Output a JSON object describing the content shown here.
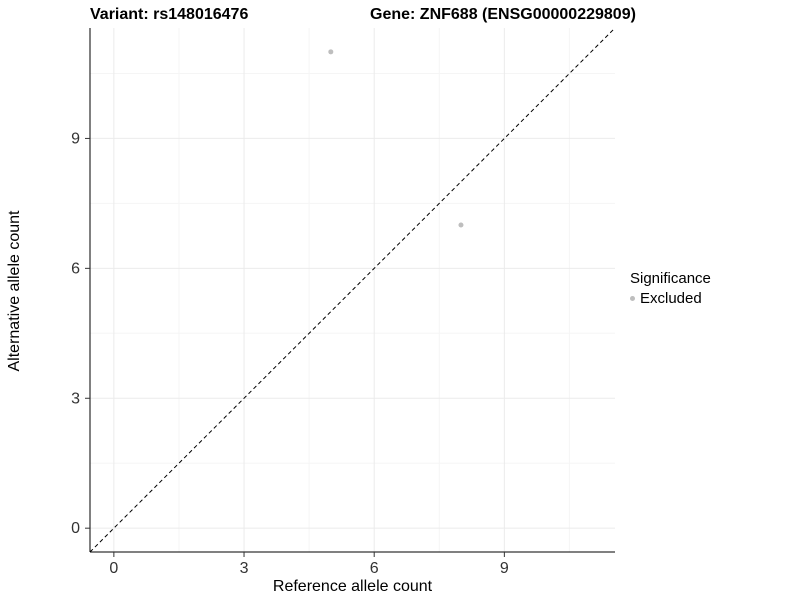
{
  "title": {
    "variant": "Variant: rs148016476",
    "gene": "Gene: ZNF688 (ENSG00000229809)"
  },
  "chart_data": {
    "type": "scatter",
    "title_left": "Variant: rs148016476",
    "title_right": "Gene: ZNF688 (ENSG00000229809)",
    "xlabel": "Reference allele count",
    "ylabel": "Alternative allele count",
    "xlim": [
      -0.55,
      11.55
    ],
    "ylim": [
      -0.55,
      11.55
    ],
    "xticks": [
      0,
      3,
      6,
      9
    ],
    "yticks": [
      0,
      3,
      6,
      9
    ],
    "xticks_minor": [
      1.5,
      4.5,
      7.5,
      10.5
    ],
    "yticks_minor": [
      1.5,
      4.5,
      7.5,
      10.5
    ],
    "grid": true,
    "identity_line": {
      "style": "dashed",
      "x1": -0.55,
      "y1": -0.55,
      "x2": 11.55,
      "y2": 11.55,
      "color": "#000000"
    },
    "series": [
      {
        "name": "Excluded",
        "color": "#bebebe",
        "points": [
          {
            "x": 5,
            "y": 11
          },
          {
            "x": 8,
            "y": 7
          }
        ]
      }
    ],
    "legend": {
      "title": "Significance",
      "position": "right",
      "items": [
        {
          "label": "Excluded",
          "color": "#bebebe",
          "marker": "dot"
        }
      ]
    }
  },
  "colors": {
    "background": "#ffffff",
    "grid_major": "#ebebeb",
    "grid_minor": "#f5f5f5",
    "axis": "#000000",
    "tick": "#333333",
    "tick_label": "#333333",
    "point": "#bebebe"
  }
}
